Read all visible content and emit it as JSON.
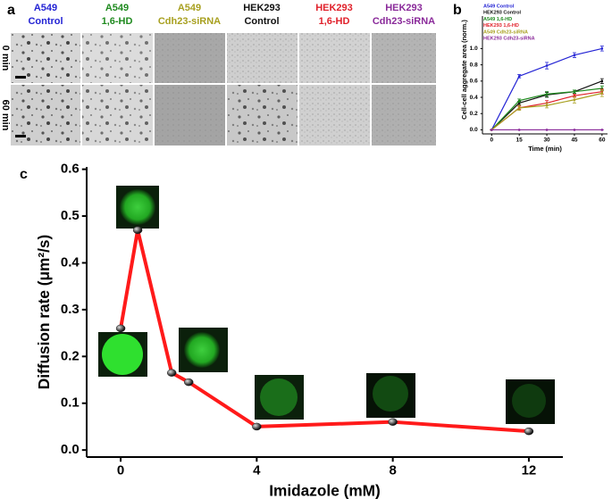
{
  "panel_labels": [
    "a",
    "b",
    "c"
  ],
  "panel_a": {
    "columns": [
      {
        "lines": [
          "A549",
          "Control"
        ],
        "color": "#2323d4"
      },
      {
        "lines": [
          "A549",
          "1,6-HD"
        ],
        "color": "#1f8a1f"
      },
      {
        "lines": [
          "A549",
          "Cdh23-siRNA"
        ],
        "color": "#a8a020"
      },
      {
        "lines": [
          "HEK293",
          "Control"
        ],
        "color": "#111111"
      },
      {
        "lines": [
          "HEK293",
          "1,6-HD"
        ],
        "color": "#e0202a"
      },
      {
        "lines": [
          "HEK293",
          "Cdh23-siRNA"
        ],
        "color": "#8a2a9a"
      }
    ],
    "rows": [
      "0 min",
      "60 min"
    ]
  },
  "chart_data": [
    {
      "type": "line",
      "xlabel": "Time (min)",
      "ylabel": "Cell-cell aggregate area (norm.)",
      "x": [
        0,
        15,
        30,
        45,
        60
      ],
      "xlim": [
        -5,
        63
      ],
      "xticks": [
        0,
        15,
        30,
        45,
        60
      ],
      "ylim": [
        -0.05,
        1.4
      ],
      "yticks": [
        {
          "value": 0,
          "label": "0.0"
        },
        0.2,
        0.4,
        0.6,
        0.8,
        {
          "value": 1,
          "label": "1.0"
        }
      ],
      "legend": "upper left",
      "series": [
        {
          "name": "A549 Control",
          "color": "#2323d4",
          "values": [
            0,
            0.66,
            0.79,
            0.92,
            1.0
          ],
          "errors": [
            0,
            0.02,
            0.04,
            0.03,
            0.03
          ]
        },
        {
          "name": "HEK293 Control",
          "color": "#111111",
          "values": [
            0,
            0.33,
            0.43,
            0.47,
            0.6
          ],
          "errors": [
            0,
            0.02,
            0.03,
            0.02,
            0.03
          ]
        },
        {
          "name": "A549 1,6-HD",
          "color": "#1f8a1f",
          "values": [
            0,
            0.36,
            0.44,
            0.47,
            0.51
          ],
          "errors": [
            0,
            0.02,
            0.03,
            0.02,
            0.03
          ]
        },
        {
          "name": "HEK293 1,6-HD",
          "color": "#e0202a",
          "values": [
            0,
            0.27,
            0.33,
            0.42,
            0.47
          ],
          "errors": [
            0,
            0.02,
            0.03,
            0.02,
            0.03
          ]
        },
        {
          "name": "A549 Cdh23-siRNA",
          "color": "#a8a020",
          "values": [
            0,
            0.27,
            0.3,
            0.37,
            0.45
          ],
          "errors": [
            0,
            0.03,
            0.03,
            0.04,
            0.04
          ]
        },
        {
          "name": "HEK293 Cdh23-siRNA",
          "color": "#8a2a9a",
          "values": [
            0,
            0,
            0,
            0,
            0
          ],
          "errors": [
            0,
            0,
            0,
            0,
            0
          ]
        }
      ]
    },
    {
      "type": "line",
      "xlabel": "Imidazole (mM)",
      "ylabel": "Diffusion rate (μm²/s)",
      "x": [
        0,
        0.5,
        1.5,
        2,
        4,
        8,
        12
      ],
      "values": [
        0.26,
        0.47,
        0.165,
        0.145,
        0.05,
        0.06,
        0.04
      ],
      "color": "#ff1a1a",
      "marker_color": "#222222",
      "xlim": [
        -1,
        13
      ],
      "xticks": [
        0,
        4,
        8,
        12
      ],
      "ylim": [
        -0.015,
        0.605
      ],
      "yticks": [
        {
          "value": 0,
          "label": "0.0"
        },
        0.1,
        0.2,
        0.3,
        0.4,
        0.5,
        0.6
      ]
    }
  ]
}
